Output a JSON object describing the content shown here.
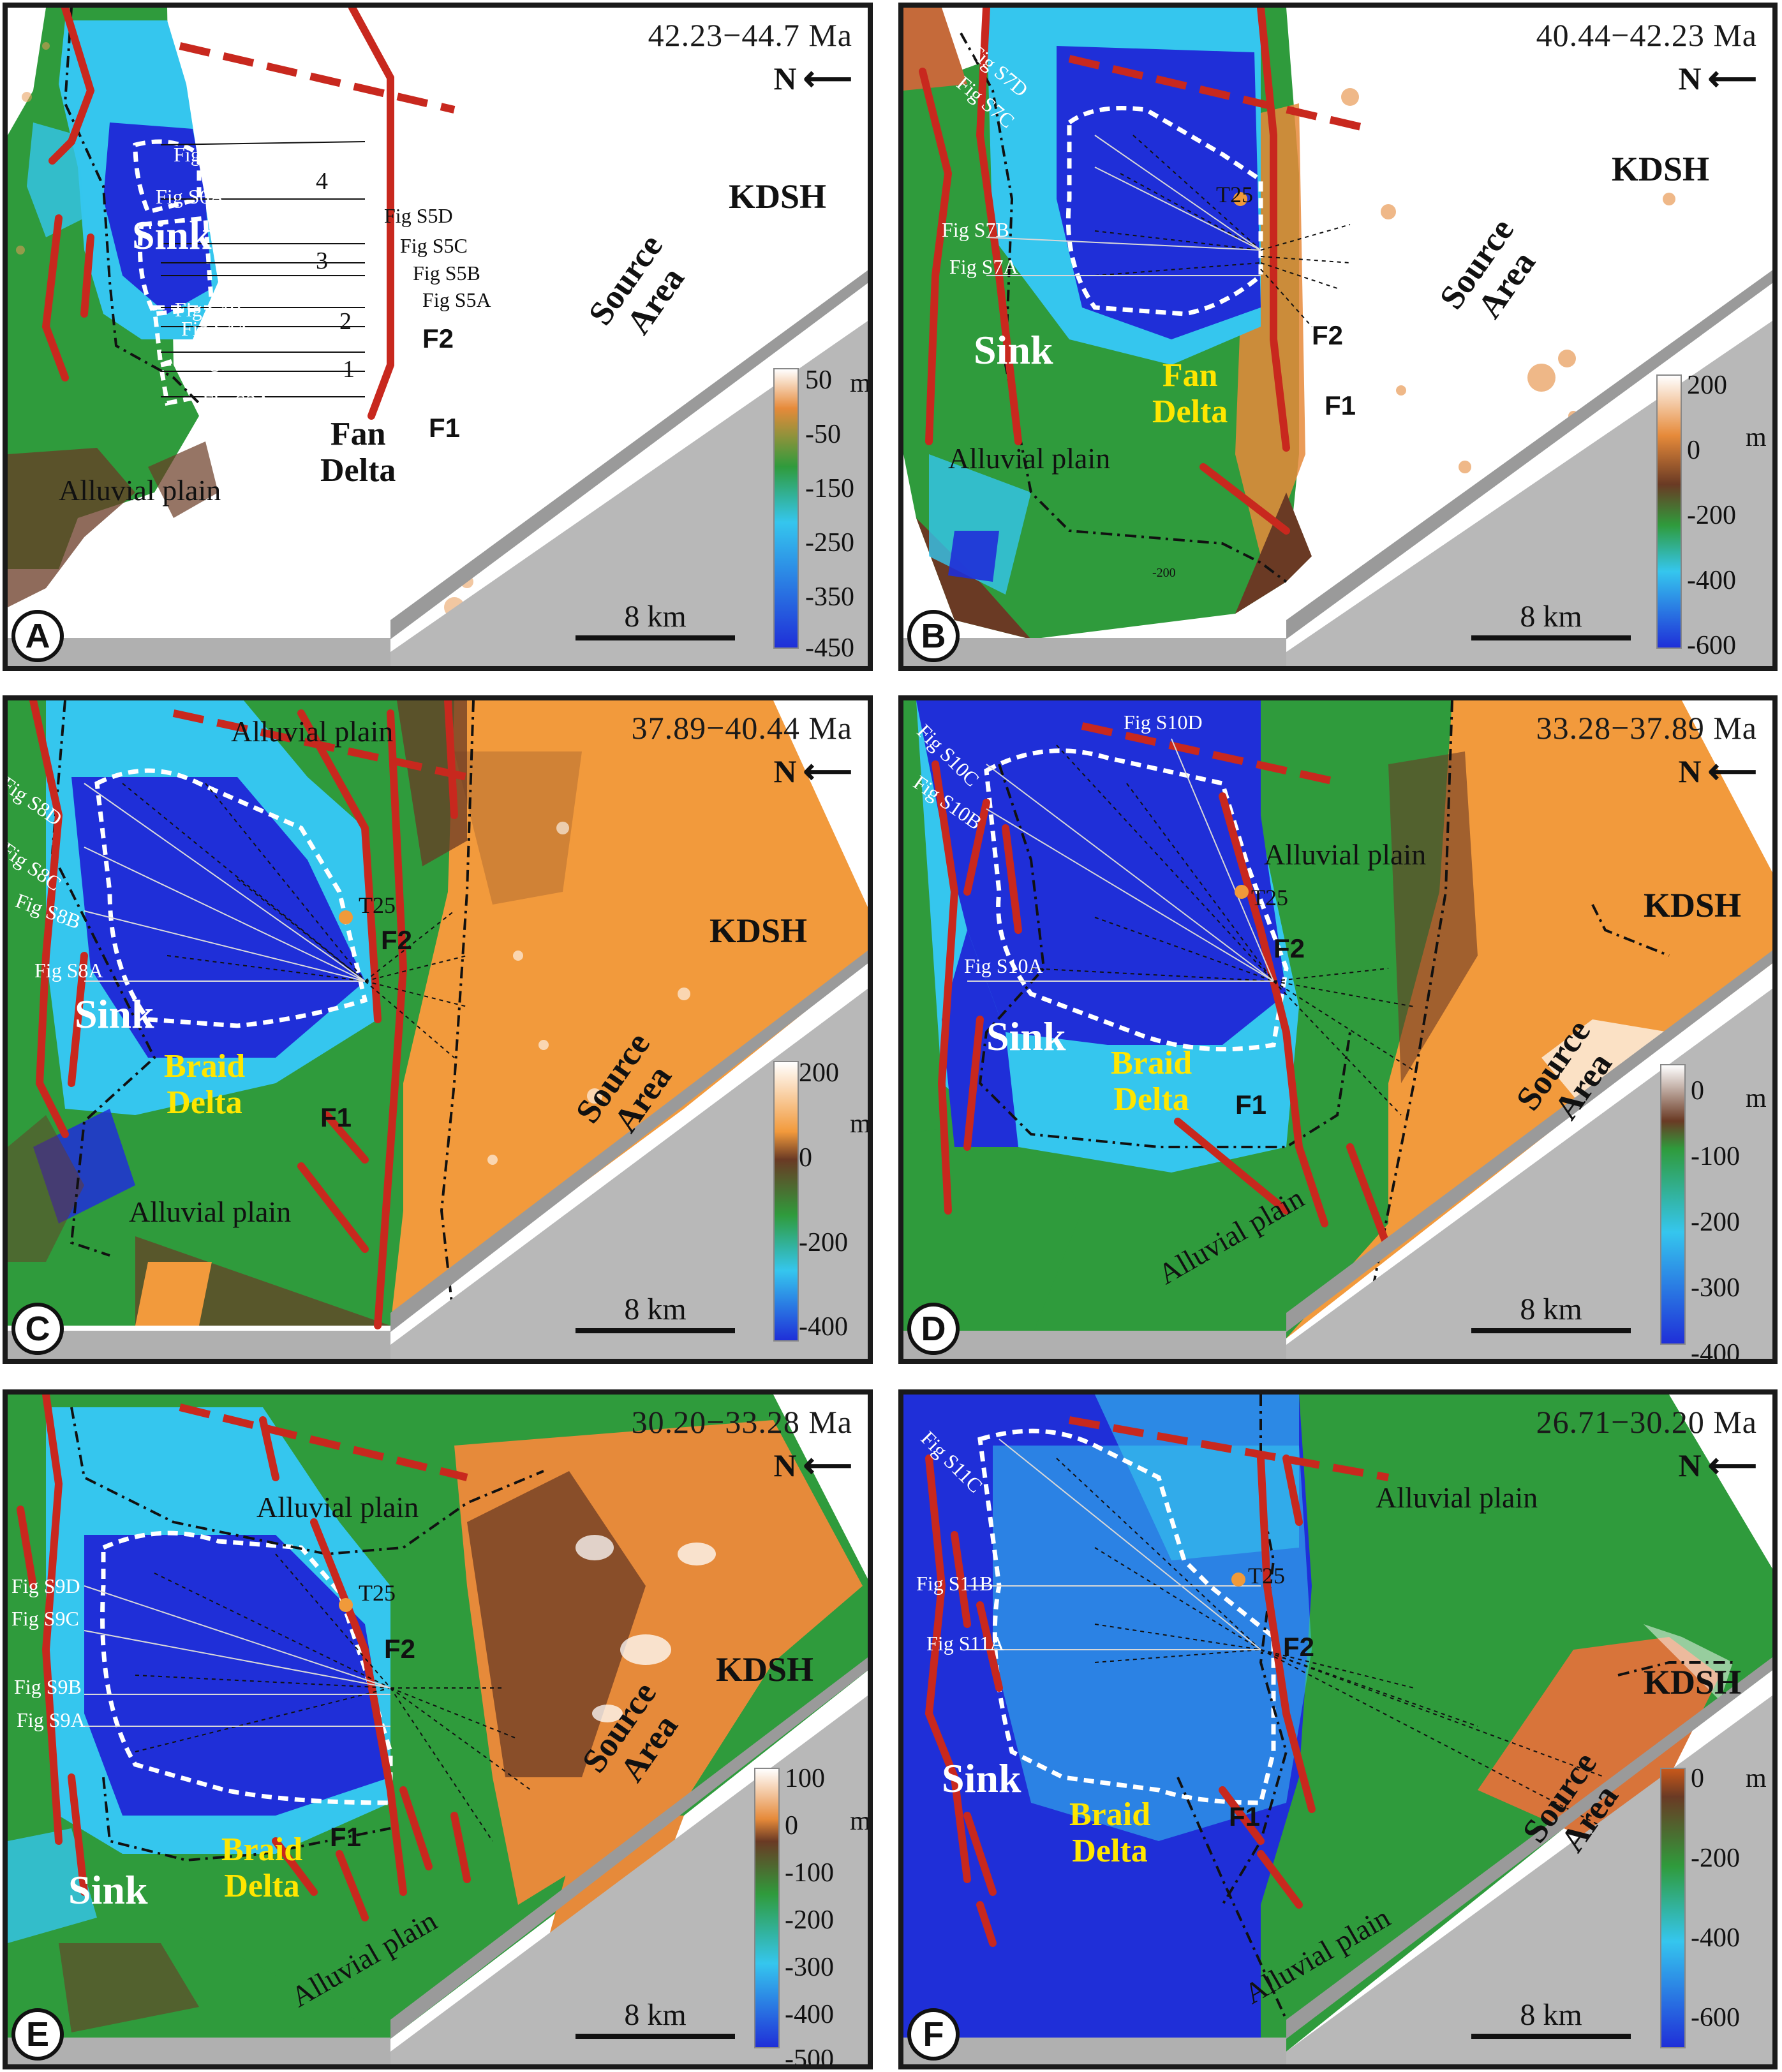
{
  "panels": [
    {
      "letter": "A",
      "age": "42.23−44.7 Ma",
      "north": "N",
      "kdsh": "KDSH",
      "source": [
        "Source",
        "Area"
      ],
      "sink": "Sink",
      "delta": [
        "Fan",
        "Delta"
      ],
      "alluvial": [
        "Alluvial plain"
      ],
      "faults": [
        "F2",
        "F1"
      ],
      "figs": [
        "Fig S6B",
        "Fig S6A",
        "Fig S5D",
        "Fig S5C",
        "Fig S5B",
        "Fig S5A",
        "Fig S4B",
        "Fig S4A",
        "Fig S3B",
        "Fig S3A"
      ],
      "numbers": [
        "4",
        "3",
        "2",
        "1"
      ],
      "scale": "8 km",
      "unit": "m",
      "ticks": [
        "50",
        "-50",
        "-150",
        "-250",
        "-350",
        "-450"
      ]
    },
    {
      "letter": "B",
      "age": "40.44−42.23 Ma",
      "north": "N",
      "kdsh": "KDSH",
      "source": [
        "Source",
        "Area"
      ],
      "sink": "Sink",
      "delta": [
        "Fan",
        "Delta"
      ],
      "alluvial": [
        "Alluvial plain"
      ],
      "faults": [
        "F2",
        "F1"
      ],
      "t25": "T25",
      "figs": [
        "Fig S7D",
        "Fig S7C",
        "Fig S7B",
        "Fig S7A"
      ],
      "contour": "-200",
      "scale": "8 km",
      "unit": "m",
      "ticks": [
        "200",
        "0",
        "-200",
        "-400",
        "-600"
      ]
    },
    {
      "letter": "C",
      "age": "37.89−40.44 Ma",
      "north": "N",
      "kdsh": "KDSH",
      "source": [
        "Source",
        "Area"
      ],
      "sink": "Sink",
      "delta": [
        "Braid",
        "Delta"
      ],
      "alluvial": [
        "Alluvial plain",
        "Alluvial plain"
      ],
      "faults": [
        "F2",
        "F1"
      ],
      "t25": "T25",
      "figs": [
        "Fig S8D",
        "Fig S8C",
        "Fig S8B",
        "Fig S8A"
      ],
      "scale": "8 km",
      "unit": "m",
      "ticks": [
        "200",
        "0",
        "-200",
        "-400"
      ]
    },
    {
      "letter": "D",
      "age": "33.28−37.89 Ma",
      "north": "N",
      "kdsh": "KDSH",
      "source": [
        "Source",
        "Area"
      ],
      "sink": "Sink",
      "delta": [
        "Braid",
        "Delta"
      ],
      "alluvial": [
        "Alluvial plain",
        "Alluvial plain"
      ],
      "faults": [
        "F2",
        "F1"
      ],
      "t25": "T25",
      "figs": [
        "Fig S10D",
        "Fig S10C",
        "Fig S10B",
        "Fig S10A"
      ],
      "scale": "8 km",
      "unit": "m",
      "ticks": [
        "0",
        "-100",
        "-200",
        "-300",
        "-400"
      ]
    },
    {
      "letter": "E",
      "age": "30.20−33.28 Ma",
      "north": "N",
      "kdsh": "KDSH",
      "source": [
        "Source",
        "Area"
      ],
      "sink": "Sink",
      "delta": [
        "Braid",
        "Delta"
      ],
      "alluvial": [
        "Alluvial plain",
        "Alluvial plain"
      ],
      "faults": [
        "F2",
        "F1"
      ],
      "t25": "T25",
      "figs": [
        "Fig S9D",
        "Fig S9C",
        "Fig S9B",
        "Fig S9A"
      ],
      "scale": "8 km",
      "unit": "m",
      "ticks": [
        "100",
        "0",
        "-100",
        "-200",
        "-300",
        "-400",
        "-500"
      ]
    },
    {
      "letter": "F",
      "age": "26.71−30.20 Ma",
      "north": "N",
      "kdsh": "KDSH",
      "source": [
        "Source",
        "Area"
      ],
      "sink": "Sink",
      "delta": [
        "Braid",
        "Delta"
      ],
      "alluvial": [
        "Alluvial plain",
        "Alluvial plain"
      ],
      "faults": [
        "F2",
        "F1"
      ],
      "t25": "T25",
      "figs": [
        "Fig S11C",
        "Fig S11B",
        "Fig S11A"
      ],
      "scale": "8 km",
      "unit": "m",
      "ticks": [
        "0",
        "-200",
        "-400",
        "-600"
      ]
    }
  ],
  "colors": {
    "deep_blue": "#1f2fd8",
    "light_blue": "#35c6ee",
    "green": "#2f9b3c",
    "brown": "#6a3a24",
    "orange": "#f29a3c",
    "white": "#ffffff",
    "fault_red": "#c8281e",
    "delta_yellow": "#ffe600",
    "boundary_white": "#ffffff"
  }
}
